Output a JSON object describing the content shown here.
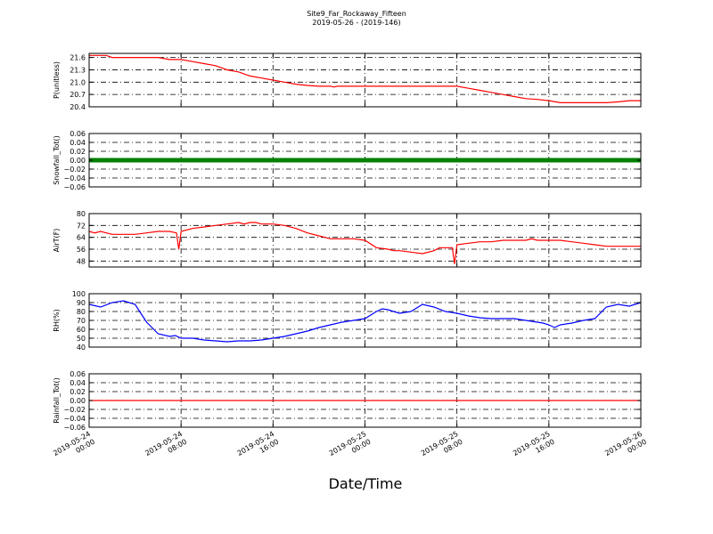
{
  "figure": {
    "title_line1": "Site9_Far_Rockaway_Fifteen",
    "title_line2": "2019-05-26 - (2019-146)",
    "xlabel": "Date/Time",
    "x_tick_labels": [
      [
        "2019-05-24",
        "00:00"
      ],
      [
        "2019-05-24",
        "08:00"
      ],
      [
        "2019-05-24",
        "16:00"
      ],
      [
        "2019-05-25",
        "00:00"
      ],
      [
        "2019-05-25",
        "08:00"
      ],
      [
        "2019-05-25",
        "16:00"
      ],
      [
        "2019-05-26",
        "00:00"
      ]
    ]
  },
  "chart_data": [
    {
      "type": "line",
      "ylabel": "P(unitless)",
      "ylim": [
        20.4,
        21.7
      ],
      "yticks": [
        "21.6",
        "21.3",
        "21.0",
        "20.7",
        "20.4"
      ],
      "ytick_values": [
        21.6,
        21.3,
        21.0,
        20.7,
        20.4
      ],
      "grid": true,
      "color": "#ff0000",
      "x_hours": [
        0,
        1.5,
        2,
        6,
        7,
        8,
        9,
        10,
        11,
        12,
        13,
        14,
        15,
        16,
        17,
        18,
        19,
        20,
        21,
        21.3,
        21.6,
        22,
        24,
        27,
        30,
        32,
        33,
        34,
        35,
        36,
        37,
        38,
        39,
        40,
        41,
        42,
        43,
        44,
        45,
        46,
        47,
        48
      ],
      "y": [
        21.65,
        21.65,
        21.6,
        21.6,
        21.55,
        21.55,
        21.5,
        21.45,
        21.4,
        21.3,
        21.25,
        21.15,
        21.1,
        21.05,
        21.0,
        20.95,
        20.92,
        20.9,
        20.9,
        20.88,
        20.9,
        20.9,
        20.9,
        20.9,
        20.9,
        20.9,
        20.85,
        20.8,
        20.75,
        20.7,
        20.65,
        20.6,
        20.58,
        20.55,
        20.5,
        20.5,
        20.5,
        20.5,
        20.5,
        20.52,
        20.55,
        20.55
      ]
    },
    {
      "type": "scatter",
      "ylabel": "Snowfall_Tot()",
      "ylim": [
        -0.06,
        0.06
      ],
      "yticks": [
        "0.06",
        "0.04",
        "0.02",
        "0.00",
        "−0.02",
        "−0.04",
        "−0.06"
      ],
      "ytick_values": [
        0.06,
        0.04,
        0.02,
        0.0,
        -0.02,
        -0.04,
        -0.06
      ],
      "grid": true,
      "color": "#008000",
      "x_hours": [
        0,
        48
      ],
      "y": [
        0.0,
        0.0
      ]
    },
    {
      "type": "line",
      "ylabel": "AirT(F)",
      "ylim": [
        44,
        80
      ],
      "yticks": [
        "80",
        "72",
        "64",
        "56",
        "48"
      ],
      "ytick_values": [
        80,
        72,
        64,
        56,
        48
      ],
      "grid": true,
      "color": "#ff0000",
      "x_hours": [
        0,
        0.5,
        1,
        1.5,
        2,
        3,
        4,
        5,
        6,
        7,
        7.6,
        7.8,
        8,
        9,
        10,
        11,
        12,
        13,
        13.5,
        14,
        14.5,
        15,
        16,
        17,
        18,
        19,
        20,
        21,
        22,
        23,
        24,
        25,
        26,
        26.5,
        27,
        28,
        29,
        30,
        30.5,
        31,
        31.6,
        31.8,
        32,
        33,
        34,
        35,
        36,
        37,
        38,
        38.5,
        39,
        40,
        41,
        42,
        43,
        44,
        45,
        46,
        47,
        48
      ],
      "y": [
        68,
        67,
        68,
        67,
        66,
        66,
        66,
        67,
        68,
        68,
        67,
        56,
        68,
        70,
        71,
        72,
        73,
        74,
        73,
        74,
        74,
        73,
        73,
        72,
        70,
        67,
        65,
        63,
        63,
        63,
        62,
        57,
        56,
        55,
        55,
        54,
        53,
        55,
        57,
        57,
        57,
        46,
        59,
        60,
        61,
        61,
        62,
        62,
        62,
        63,
        62,
        62,
        62,
        61,
        60,
        59,
        58,
        58,
        58,
        58
      ]
    },
    {
      "type": "line",
      "ylabel": "RH(%)",
      "ylim": [
        40,
        100
      ],
      "yticks": [
        "100",
        "90",
        "80",
        "70",
        "60",
        "50",
        "40"
      ],
      "ytick_values": [
        100,
        90,
        80,
        70,
        60,
        50,
        40
      ],
      "grid": true,
      "color": "#0000ff",
      "x_hours": [
        0,
        1,
        2,
        3,
        4,
        4.5,
        5,
        6,
        7,
        7.5,
        8,
        9,
        10,
        11,
        12,
        13,
        14,
        15,
        16,
        17,
        18,
        19,
        20,
        21,
        22,
        23,
        24,
        25,
        25.5,
        26,
        26.5,
        27,
        28,
        29,
        30,
        31,
        32,
        33,
        34,
        35,
        36,
        37,
        38,
        39,
        39.5,
        40,
        40.5,
        41,
        42,
        43,
        44,
        45,
        46,
        47,
        48
      ],
      "y": [
        88,
        85,
        90,
        92,
        88,
        78,
        68,
        55,
        52,
        53,
        50,
        50,
        48,
        47,
        46,
        47,
        47,
        48,
        50,
        52,
        55,
        58,
        62,
        65,
        68,
        70,
        72,
        80,
        83,
        82,
        80,
        78,
        80,
        88,
        85,
        80,
        78,
        75,
        73,
        72,
        72,
        72,
        70,
        68,
        67,
        65,
        62,
        65,
        67,
        70,
        72,
        85,
        88,
        86,
        90
      ]
    },
    {
      "type": "line",
      "ylabel": "Rainfall_Tot()",
      "ylim": [
        -0.06,
        0.06
      ],
      "yticks": [
        "0.06",
        "0.04",
        "0.02",
        "0.00",
        "−0.02",
        "−0.04",
        "−0.06"
      ],
      "ytick_values": [
        0.06,
        0.04,
        0.02,
        0.0,
        -0.02,
        -0.04,
        -0.06
      ],
      "grid": true,
      "color": "#ff0000",
      "x_hours": [
        0,
        48
      ],
      "y": [
        0.0,
        0.0
      ]
    }
  ]
}
